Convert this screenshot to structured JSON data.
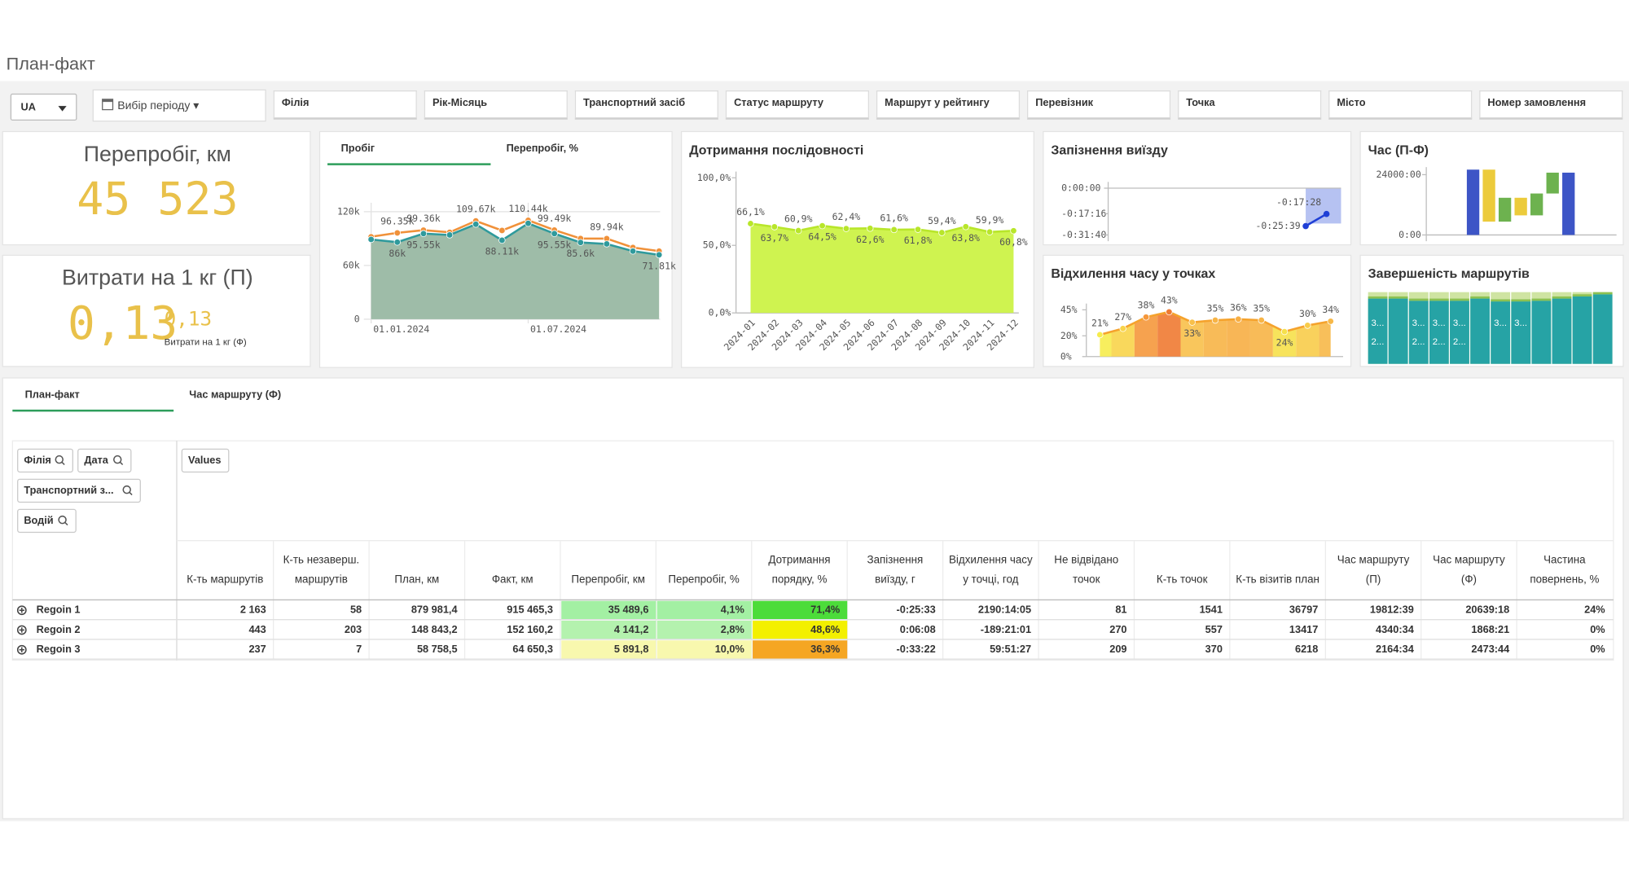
{
  "header": {
    "title": "План-факт"
  },
  "filters": {
    "language": "UA",
    "period": "Вибір періоду",
    "fields": [
      "Філія",
      "Рік-Місяць",
      "Транспортний засіб",
      "Статус маршруту",
      "Маршрут у рейтингу",
      "Перевізник",
      "Точка",
      "Місто",
      "Номер замовлення"
    ]
  },
  "kpis": [
    {
      "title": "Перепробіг, км",
      "value": "45 523"
    },
    {
      "title": "Витрати на 1 кг (П)",
      "value": "0,13",
      "secondary_value": "0,13",
      "secondary_label": "Витрати на 1 кг (Ф)"
    }
  ],
  "chart_data": [
    {
      "type": "area",
      "tabs": [
        "Пробіг",
        "Перепробіг, %"
      ],
      "x": [
        0,
        1,
        2,
        3,
        4,
        5,
        6,
        7,
        8,
        9,
        10,
        11
      ],
      "xlim": [
        0,
        11
      ],
      "xticks": [
        {
          "value": 0,
          "label": "01.01.2024"
        },
        {
          "value": 6,
          "label": "01.07.2024"
        }
      ],
      "ylim": [
        0,
        130000
      ],
      "yticks": [
        0,
        {
          "value": 60000,
          "label": "60k"
        },
        {
          "value": 120000,
          "label": "120k"
        }
      ],
      "grid": true,
      "series": [
        {
          "color": "#f0913a",
          "values": [
            92000,
            96350,
            99360,
            97000,
            109670,
            99000,
            110440,
            99490,
            90000,
            89940,
            80000,
            76000
          ],
          "value_labels": [
            null,
            "96.35k",
            "99.36k",
            null,
            "109.67k",
            null,
            "110.44k",
            "99.49k",
            null,
            "89.94k",
            null,
            null
          ]
        },
        {
          "color": "#2f9a9c",
          "fill_color": "#9ebca8",
          "values": [
            89000,
            86000,
            95550,
            94000,
            106000,
            88110,
            107000,
            95550,
            85600,
            84000,
            76000,
            71810
          ],
          "value_labels": [
            null,
            "86k",
            "95.55k",
            null,
            null,
            "88.11k",
            null,
            "95.55k",
            "85.6k",
            null,
            null,
            "71.81k"
          ]
        }
      ]
    },
    {
      "type": "area",
      "title": "Дотримання послідовності",
      "categories": [
        "2024-01",
        "2024-02",
        "2024-03",
        "2024-04",
        "2024-05",
        "2024-06",
        "2024-07",
        "2024-08",
        "2024-09",
        "2024-10",
        "2024-11",
        "2024-12"
      ],
      "values": [
        66.1,
        63.7,
        60.9,
        64.5,
        62.4,
        62.6,
        61.6,
        61.8,
        59.4,
        63.8,
        59.9,
        60.8
      ],
      "value_labels": [
        "66,1%",
        "63,7%",
        "60,9%",
        "64,5%",
        "62,4%",
        "62,6%",
        "61,6%",
        "61,8%",
        "59,4%",
        "63,8%",
        "59,9%",
        "60,8%"
      ],
      "ylim": [
        0,
        100
      ],
      "yticks": [
        {
          "value": 0,
          "label": "0,0%"
        },
        {
          "value": 50,
          "label": "50,0%"
        },
        {
          "value": 100,
          "label": "100,0%"
        }
      ],
      "grid": false,
      "color": "#b8e62a",
      "fill_color": "#cff350"
    },
    {
      "type": "line",
      "title": "Запізнення виїзду",
      "values": [
        -1539,
        -1048
      ],
      "value_labels": [
        "-0:25:39",
        "-0:17:28"
      ],
      "ylim": [
        -1900,
        0
      ],
      "yticks": [
        {
          "value": 0,
          "label": "0:00:00"
        },
        {
          "value": -1036,
          "label": "-0:17:16"
        },
        {
          "value": -1900,
          "label": "-0:31:40"
        }
      ],
      "color": "#1f3fd6",
      "selection_color": "#b6c2f2"
    },
    {
      "type": "waterfall",
      "title": "Час (П-Ф)",
      "values": [
        26000,
        -20700,
        9500,
        -7000,
        8700,
        8300,
        24800
      ],
      "totals": [
        true,
        false,
        false,
        false,
        false,
        false,
        true
      ],
      "colors": [
        "#3d55c6",
        "#eccb3b",
        "#6db24f",
        "#eccb3b",
        "#6db24f",
        "#6db24f",
        "#3d55c6"
      ],
      "ylim": [
        0,
        27000
      ],
      "yticks": [
        {
          "value": 0,
          "label": "0:00"
        },
        {
          "value": 24000,
          "label": "24000:00"
        }
      ]
    },
    {
      "type": "area",
      "title": "Відхилення часу у точках",
      "values": [
        21,
        27,
        38,
        43,
        33,
        35,
        36,
        35,
        24,
        30,
        34
      ],
      "value_labels": [
        "21%",
        "27%",
        "38%",
        "43%",
        "33%",
        "35%",
        "36%",
        "35%",
        "24%",
        "30%",
        "34%"
      ],
      "colors": [
        "#f6ec4c",
        "#f8d44a",
        "#f5983c",
        "#f07a32",
        "#f8c04a",
        "#f7b446",
        "#f7ae44",
        "#f7b446",
        "#f6e04a",
        "#f8cc4a",
        "#f7b848"
      ],
      "color": "#f5a22c",
      "grid": false,
      "ylim": [
        0,
        45
      ],
      "yticks": [
        {
          "value": 0,
          "label": "0%"
        },
        {
          "value": 20,
          "label": "20%"
        },
        {
          "value": 45,
          "label": "45%"
        }
      ]
    },
    {
      "type": "stacked_bar",
      "title": "Завершеність маршрутів",
      "ylim": [
        0,
        100
      ],
      "background_color": "#cfe4a2",
      "series": [
        {
          "color": "#26a3a5",
          "values": [
            91,
            91,
            88,
            88,
            88,
            91,
            87,
            87,
            88,
            91,
            94,
            97
          ]
        },
        {
          "color": "#8cc152",
          "values": [
            3,
            3,
            3,
            3,
            3,
            3,
            3,
            3,
            3,
            3,
            3,
            3
          ]
        }
      ],
      "bar_texts": [
        [
          "3...",
          "2..."
        ],
        [
          null,
          null
        ],
        [
          "3...",
          "2..."
        ],
        [
          "3...",
          "2..."
        ],
        [
          "3...",
          "2..."
        ],
        [
          null,
          null
        ],
        [
          "3...",
          null
        ],
        [
          "3...",
          null
        ],
        [
          null,
          null
        ],
        [
          null,
          null
        ],
        [
          null,
          null
        ],
        [
          null,
          null
        ]
      ]
    }
  ],
  "table": {
    "tabs": [
      "План-факт",
      "Час маршруту (Ф)"
    ],
    "dimensions": [
      "Філія",
      "Дата",
      "Транспортний з...",
      "Водій"
    ],
    "measures": "Values",
    "columns": [
      [
        "К-ть маршрутів"
      ],
      [
        "К-ть незаверш.",
        "маршрутів"
      ],
      [
        "План, км"
      ],
      [
        "Факт, км"
      ],
      [
        "Перепробіг, км"
      ],
      [
        "Перепробіг, %"
      ],
      [
        "Дотримання",
        "порядку, %"
      ],
      [
        "Запізнення",
        "виїзду, г"
      ],
      [
        "Відхилення часу",
        "у точці, год"
      ],
      [
        "Не відвідано",
        "точок"
      ],
      [
        "К-ть точок"
      ],
      [
        "К-ть візитів план"
      ],
      [
        "Час маршруту",
        "(П)"
      ],
      [
        "Час маршруту",
        "(Ф)"
      ],
      [
        "Частина",
        "повернень, %"
      ]
    ],
    "rows": [
      {
        "label": "Regoin 1",
        "cells": [
          "2 163",
          "58",
          "879 981,4",
          "915 465,3",
          "35 489,6",
          "4,1%",
          "71,4%",
          "-0:25:33",
          "2190:14:05",
          "81",
          "1541",
          "36797",
          "19812:39",
          "20639:18",
          "24%"
        ],
        "fills": [
          null,
          null,
          null,
          null,
          "#a3f0a3",
          "#a3f0a3",
          "#4cdc3a",
          null,
          null,
          null,
          null,
          null,
          null,
          null,
          null
        ],
        "text_colors": [
          null,
          null,
          null,
          null,
          null,
          null,
          null,
          null,
          null,
          "#e00000",
          null,
          null,
          null,
          null,
          null
        ]
      },
      {
        "label": "Regoin 2",
        "cells": [
          "443",
          "203",
          "148 843,2",
          "152 160,2",
          "4 141,2",
          "2,8%",
          "48,6%",
          "0:06:08",
          "-189:21:01",
          "270",
          "557",
          "13417",
          "4340:34",
          "1868:21",
          "0%"
        ],
        "fills": [
          null,
          null,
          null,
          null,
          "#b4f2ae",
          "#b4f2ae",
          "#f3f000",
          null,
          null,
          null,
          null,
          null,
          null,
          null,
          null
        ],
        "text_colors": [
          null,
          null,
          null,
          null,
          null,
          null,
          null,
          null,
          null,
          "#e00000",
          null,
          null,
          null,
          null,
          null
        ]
      },
      {
        "label": "Regoin 3",
        "cells": [
          "237",
          "7",
          "58 758,5",
          "64 650,3",
          "5 891,8",
          "10,0%",
          "36,3%",
          "-0:33:22",
          "59:51:27",
          "209",
          "370",
          "6218",
          "2164:34",
          "2473:44",
          "0%"
        ],
        "fills": [
          null,
          null,
          null,
          null,
          "#f8f8ae",
          "#f8f8ae",
          "#f5a623",
          null,
          null,
          null,
          null,
          null,
          null,
          null,
          null
        ],
        "text_colors": [
          null,
          null,
          null,
          null,
          null,
          null,
          null,
          null,
          null,
          "#e00000",
          null,
          null,
          null,
          null,
          null
        ]
      }
    ]
  }
}
